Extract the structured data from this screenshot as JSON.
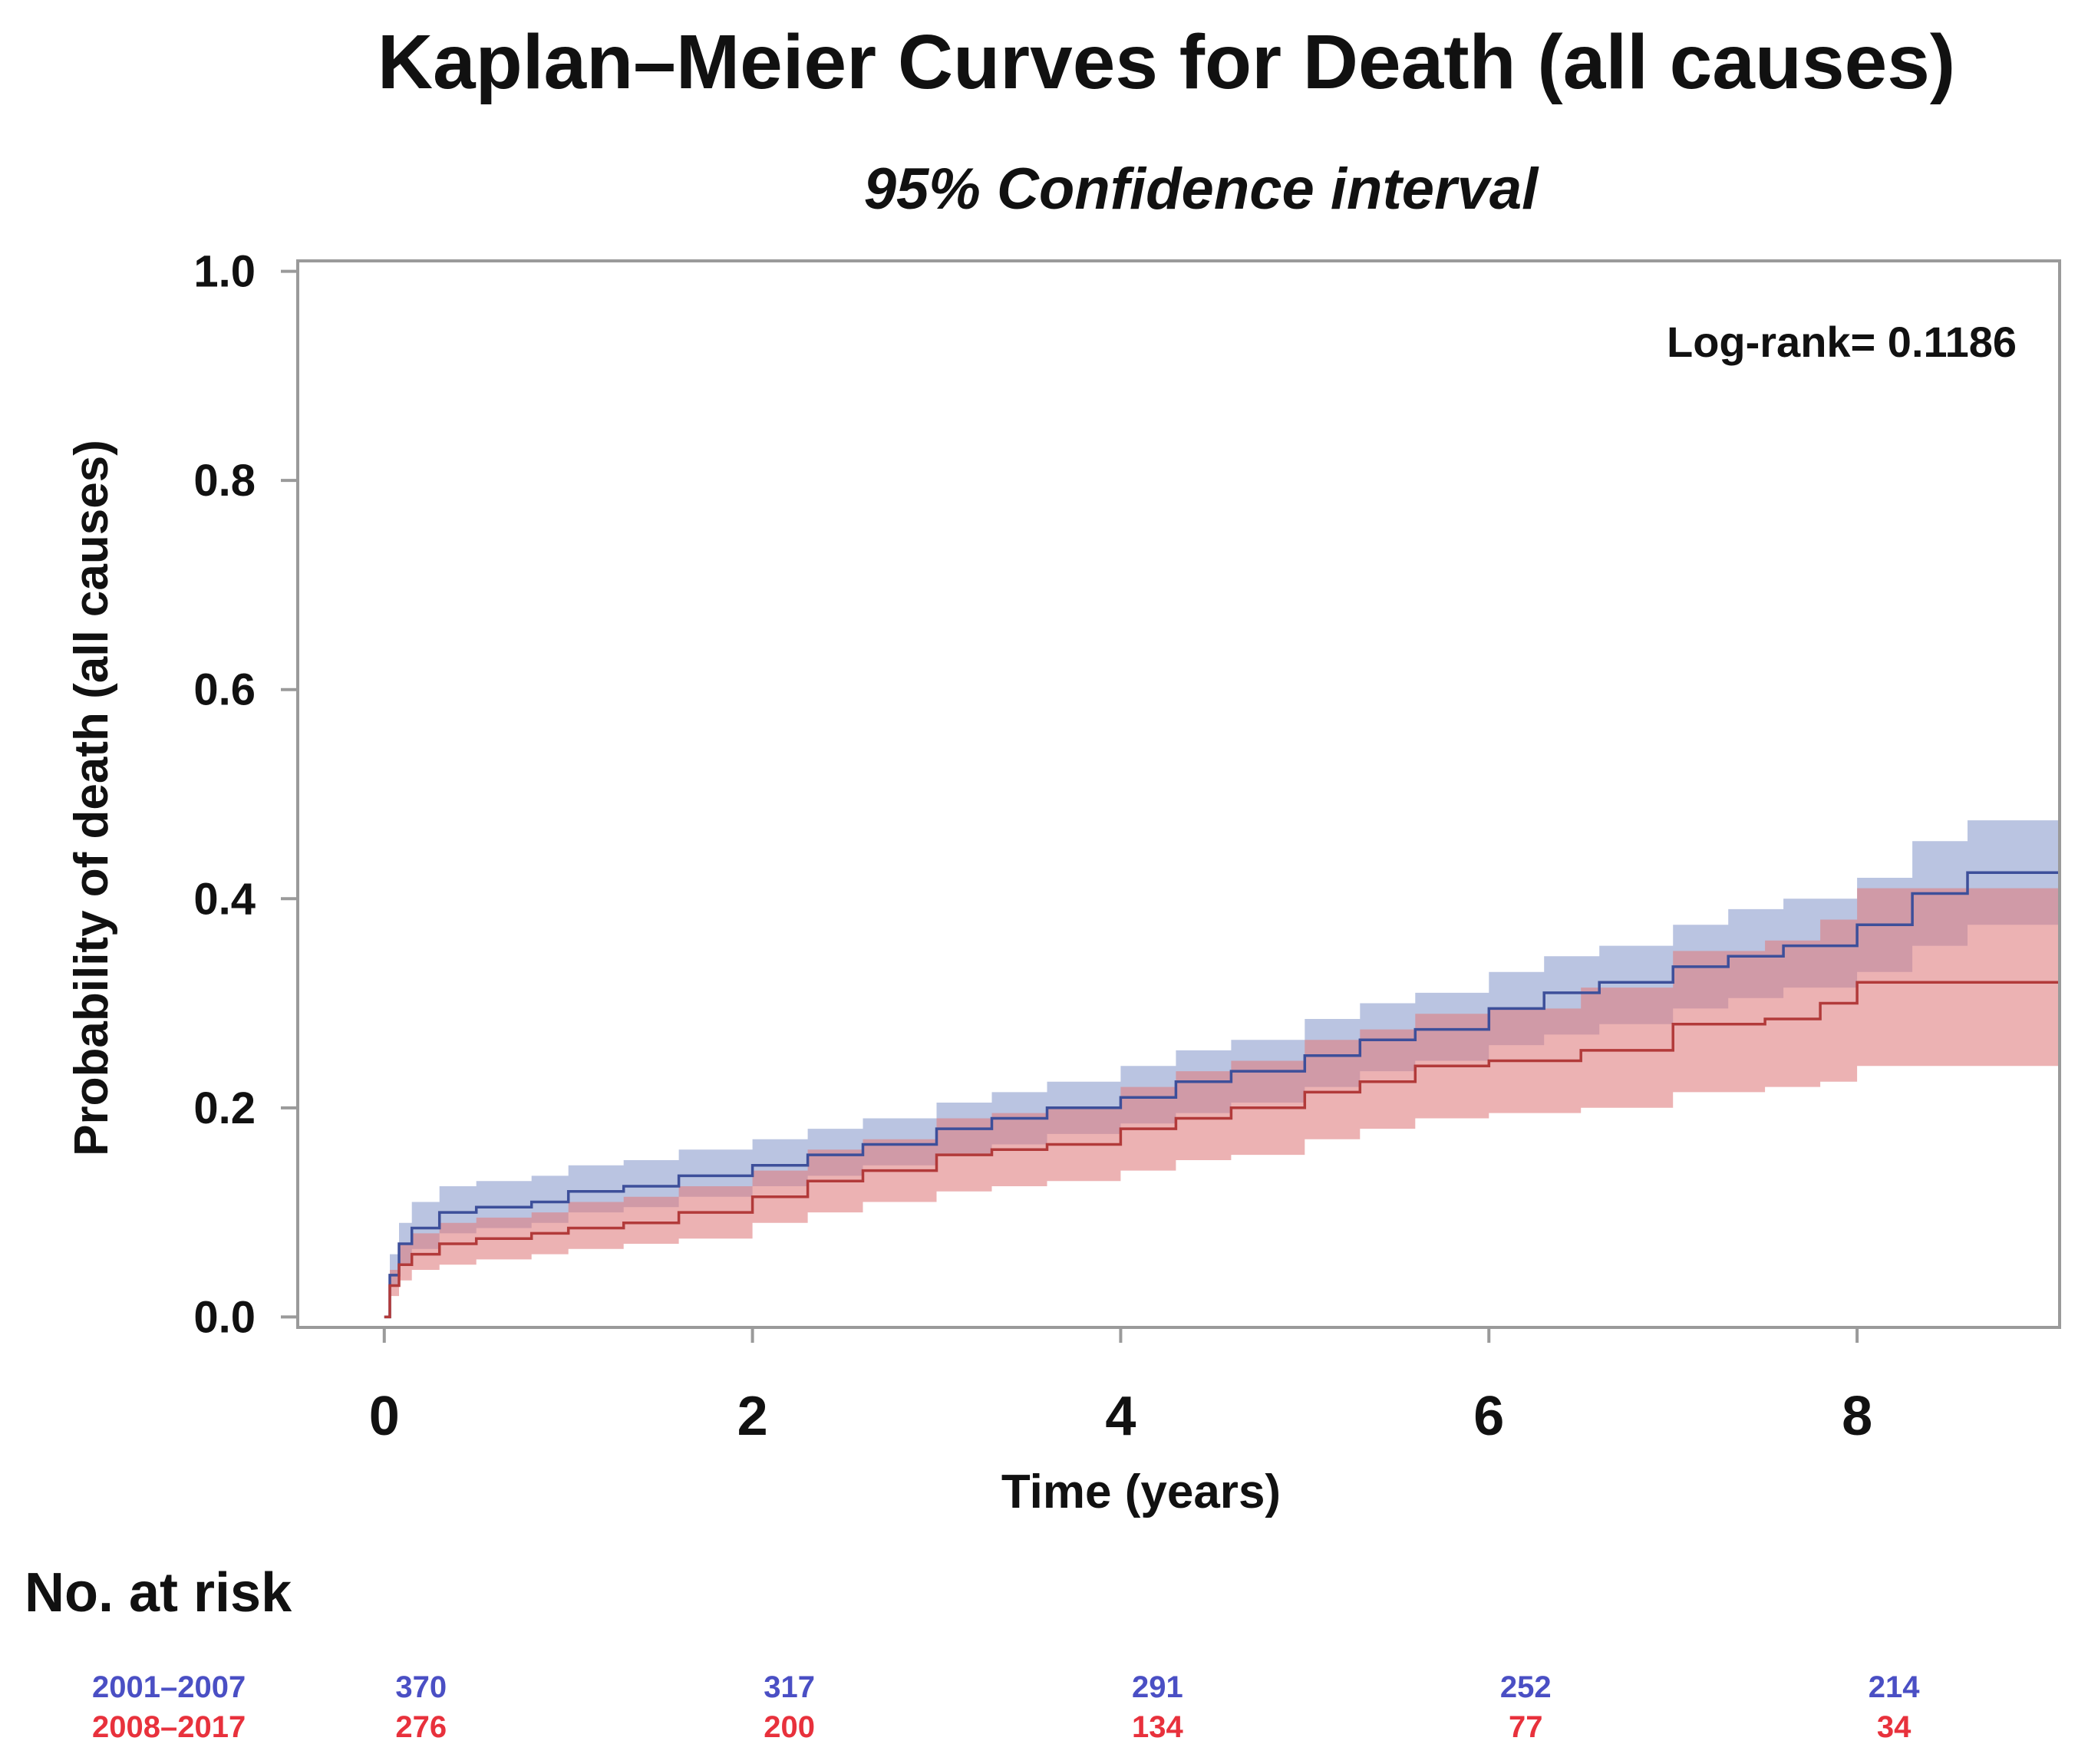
{
  "chart_data": {
    "type": "line",
    "title": "Kaplan–Meier Curves for Death (all causes)",
    "subtitle": "95% Confidence interval",
    "xlabel": "Time (years)",
    "ylabel": "Probability of death (all causes)",
    "xlim": [
      -0.47,
      9.1
    ],
    "ylim": [
      -0.01,
      1.01
    ],
    "x_ticks": [
      0,
      2,
      4,
      6,
      8
    ],
    "x_tick_labels": [
      "0",
      "2",
      "4",
      "6",
      "8"
    ],
    "y_ticks": [
      0.0,
      0.2,
      0.4,
      0.6,
      0.8,
      1.0
    ],
    "y_tick_labels": [
      "0.0",
      "0.2",
      "0.4",
      "0.6",
      "0.8",
      "1.0"
    ],
    "annotation": "Log-rank= 0.1186",
    "series": [
      {
        "name": "2001–2007",
        "color": "#3d4f9a",
        "band_color": "#8c9ccd",
        "x": [
          0,
          0.03,
          0.08,
          0.15,
          0.3,
          0.5,
          0.8,
          1.0,
          1.3,
          1.6,
          2.0,
          2.3,
          2.6,
          3.0,
          3.3,
          3.6,
          4.0,
          4.3,
          4.6,
          5.0,
          5.3,
          5.6,
          6.0,
          6.3,
          6.6,
          7.0,
          7.3,
          7.6,
          8.0,
          8.3,
          8.6,
          9.1
        ],
        "y": [
          0,
          0.04,
          0.07,
          0.085,
          0.1,
          0.105,
          0.11,
          0.12,
          0.125,
          0.135,
          0.145,
          0.155,
          0.165,
          0.18,
          0.19,
          0.2,
          0.21,
          0.225,
          0.235,
          0.25,
          0.265,
          0.275,
          0.295,
          0.31,
          0.32,
          0.335,
          0.345,
          0.355,
          0.375,
          0.405,
          0.425,
          0.45
        ],
        "lower": [
          0,
          0.03,
          0.05,
          0.065,
          0.08,
          0.085,
          0.09,
          0.1,
          0.105,
          0.115,
          0.125,
          0.135,
          0.145,
          0.155,
          0.165,
          0.175,
          0.185,
          0.195,
          0.205,
          0.22,
          0.235,
          0.245,
          0.26,
          0.27,
          0.28,
          0.295,
          0.305,
          0.315,
          0.33,
          0.355,
          0.375,
          0.4
        ],
        "upper": [
          0,
          0.06,
          0.09,
          0.11,
          0.125,
          0.13,
          0.135,
          0.145,
          0.15,
          0.16,
          0.17,
          0.18,
          0.19,
          0.205,
          0.215,
          0.225,
          0.24,
          0.255,
          0.265,
          0.285,
          0.3,
          0.31,
          0.33,
          0.345,
          0.355,
          0.375,
          0.39,
          0.4,
          0.42,
          0.455,
          0.475,
          0.5
        ]
      },
      {
        "name": "2008–2017",
        "color": "#b23a3a",
        "band_color": "#e07f80",
        "x": [
          0,
          0.03,
          0.08,
          0.15,
          0.3,
          0.5,
          0.8,
          1.0,
          1.3,
          1.6,
          2.0,
          2.3,
          2.6,
          3.0,
          3.3,
          3.6,
          4.0,
          4.3,
          4.6,
          5.0,
          5.3,
          5.6,
          6.0,
          6.5,
          7.0,
          7.5,
          7.8,
          8.0,
          9.1
        ],
        "y": [
          0,
          0.03,
          0.05,
          0.06,
          0.07,
          0.075,
          0.08,
          0.085,
          0.09,
          0.1,
          0.115,
          0.13,
          0.14,
          0.155,
          0.16,
          0.165,
          0.18,
          0.19,
          0.2,
          0.215,
          0.225,
          0.24,
          0.245,
          0.255,
          0.28,
          0.285,
          0.3,
          0.32,
          0.32
        ],
        "lower": [
          0,
          0.02,
          0.035,
          0.045,
          0.05,
          0.055,
          0.06,
          0.065,
          0.07,
          0.075,
          0.09,
          0.1,
          0.11,
          0.12,
          0.125,
          0.13,
          0.14,
          0.15,
          0.155,
          0.17,
          0.18,
          0.19,
          0.195,
          0.2,
          0.215,
          0.22,
          0.225,
          0.24,
          0.24
        ],
        "upper": [
          0,
          0.045,
          0.07,
          0.08,
          0.09,
          0.095,
          0.1,
          0.11,
          0.115,
          0.125,
          0.14,
          0.16,
          0.17,
          0.19,
          0.195,
          0.2,
          0.22,
          0.235,
          0.245,
          0.265,
          0.275,
          0.29,
          0.295,
          0.315,
          0.35,
          0.36,
          0.38,
          0.41,
          0.41
        ]
      }
    ],
    "risk_table": {
      "title": "No. at risk",
      "times": [
        0,
        2,
        4,
        6,
        8
      ],
      "rows": [
        {
          "label": "2001–2007",
          "color": "#4a4fc4",
          "values": [
            "370",
            "317",
            "291",
            "252",
            "214"
          ]
        },
        {
          "label": "2008–2017",
          "color": "#e8313c",
          "values": [
            "276",
            "200",
            "134",
            "77",
            "34"
          ]
        }
      ]
    }
  }
}
